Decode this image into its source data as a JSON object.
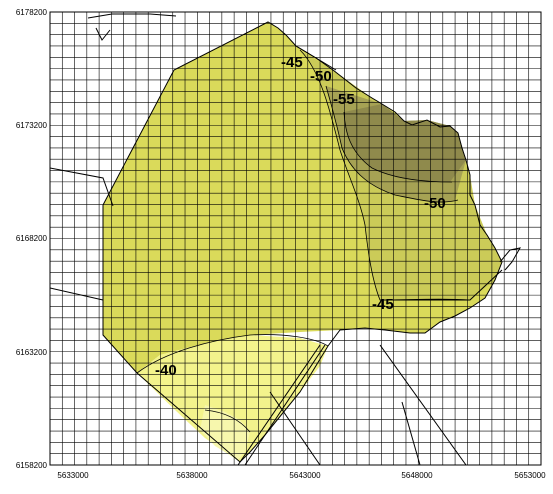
{
  "map": {
    "x_ticks": [
      "5633000",
      "5638000",
      "5643000",
      "5648000",
      "5653000"
    ],
    "y_ticks": [
      "6178200",
      "6173200",
      "6168200",
      "6163200",
      "6158200"
    ],
    "contour_labels": [
      "-45",
      "-50",
      "-55",
      "-50",
      "-45",
      "-40"
    ],
    "grid_cell_size_m": 500,
    "extent": {
      "xmin": 5633000,
      "xmax": 5653000,
      "ymin": 6158200,
      "ymax": 6178200
    },
    "colors": {
      "fill_main": "#dada5a",
      "fill_light": "#f2f28a",
      "fill_lighter": "#f6f6a6",
      "fill_mid": "#cbcb58",
      "fill_dark": "#a6a254",
      "fill_darkest": "#8f8a4c",
      "grid": "#000000"
    }
  }
}
